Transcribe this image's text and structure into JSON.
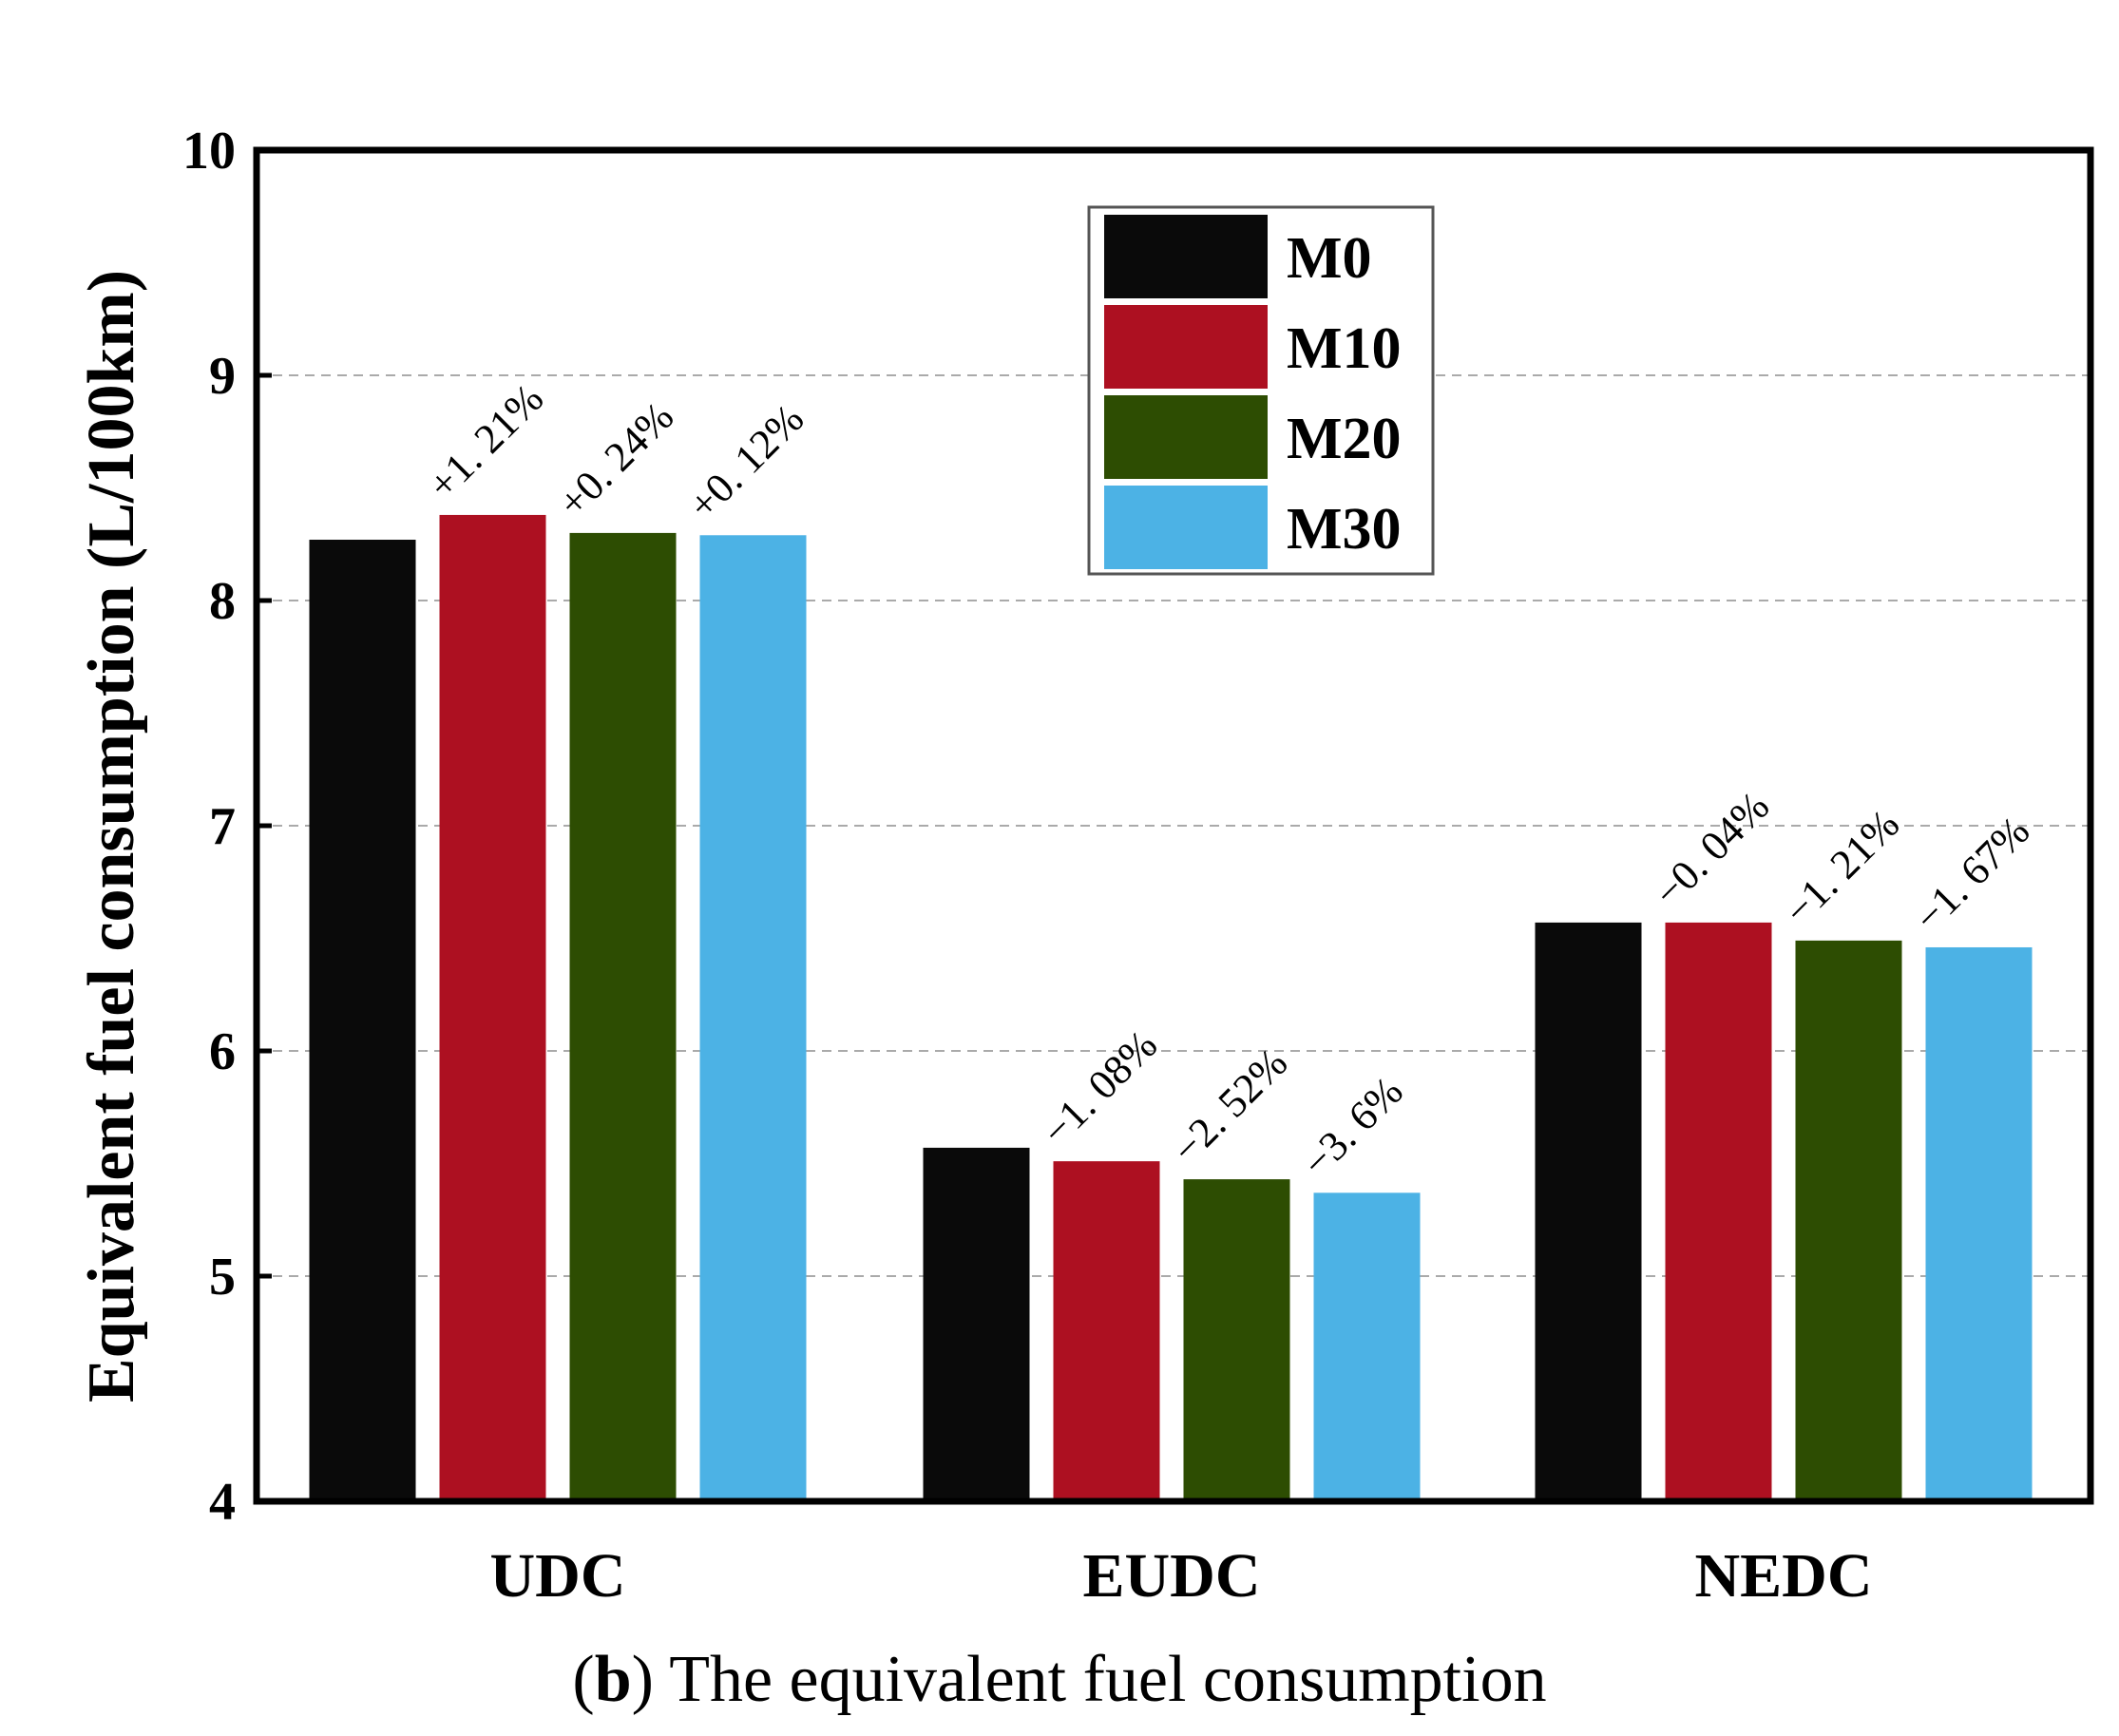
{
  "chart_data": {
    "type": "bar",
    "categories": [
      "UDC",
      "EUDC",
      "NEDC"
    ],
    "series": [
      {
        "name": "M0",
        "color": "#0a0a0a",
        "values": [
          8.27,
          5.57,
          6.57
        ]
      },
      {
        "name": "M10",
        "color": "#ad1021",
        "values": [
          8.38,
          5.51,
          6.57
        ]
      },
      {
        "name": "M20",
        "color": "#2d4d02",
        "values": [
          8.3,
          5.43,
          6.49
        ]
      },
      {
        "name": "M30",
        "color": "#4cb2e5",
        "values": [
          8.29,
          5.37,
          6.46
        ]
      }
    ],
    "annotations": [
      {
        "category": 0,
        "series": 1,
        "text": "+1. 21%"
      },
      {
        "category": 0,
        "series": 2,
        "text": "+0. 24%"
      },
      {
        "category": 0,
        "series": 3,
        "text": "+0. 12%"
      },
      {
        "category": 1,
        "series": 1,
        "text": "−1. 08%"
      },
      {
        "category": 1,
        "series": 2,
        "text": "−2. 52%"
      },
      {
        "category": 1,
        "series": 3,
        "text": "−3. 6%"
      },
      {
        "category": 2,
        "series": 1,
        "text": "−0. 04%"
      },
      {
        "category": 2,
        "series": 2,
        "text": "−1. 21%"
      },
      {
        "category": 2,
        "series": 3,
        "text": "−1. 67%"
      }
    ],
    "title": "",
    "xlabel": "",
    "ylabel": "Equivalent fuel consumption (L/100km)",
    "ylim": [
      4,
      10
    ],
    "yticks": [
      4,
      5,
      6,
      7,
      8,
      9,
      10
    ],
    "grid": true,
    "legend_position": "top-center"
  },
  "caption": {
    "letter": "b",
    "text": " The equivalent fuel consumption"
  }
}
